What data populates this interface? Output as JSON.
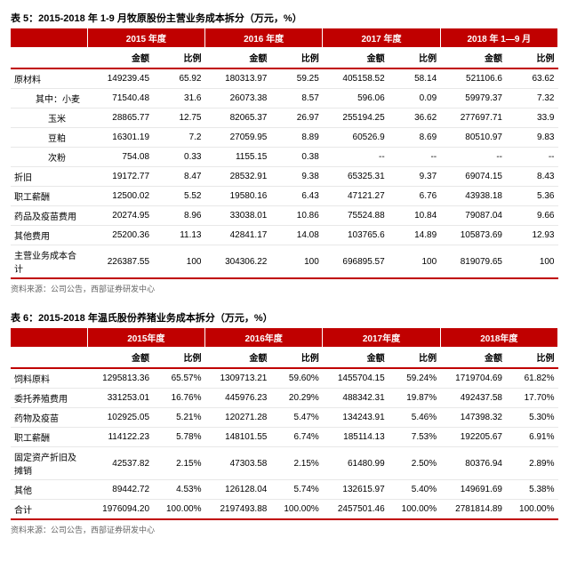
{
  "table5": {
    "title": "表 5：2015-2018 年 1-9 月牧原股份主营业务成本拆分（万元，%）",
    "year_headers": [
      "2015 年度",
      "2016 年度",
      "2017 年度",
      "2018 年 1—9 月"
    ],
    "sub_headers": [
      "金额",
      "比例",
      "金额",
      "比例",
      "金额",
      "比例",
      "金额",
      "比例"
    ],
    "rows": [
      {
        "label": "原材料",
        "indent": 0,
        "v": [
          "149239.45",
          "65.92",
          "180313.97",
          "59.25",
          "405158.52",
          "58.14",
          "521106.6",
          "63.62"
        ]
      },
      {
        "label": "其中：小麦",
        "indent": 1,
        "v": [
          "71540.48",
          "31.6",
          "26073.38",
          "8.57",
          "596.06",
          "0.09",
          "59979.37",
          "7.32"
        ]
      },
      {
        "label": "玉米",
        "indent": 2,
        "v": [
          "28865.77",
          "12.75",
          "82065.37",
          "26.97",
          "255194.25",
          "36.62",
          "277697.71",
          "33.9"
        ]
      },
      {
        "label": "豆粕",
        "indent": 2,
        "v": [
          "16301.19",
          "7.2",
          "27059.95",
          "8.89",
          "60526.9",
          "8.69",
          "80510.97",
          "9.83"
        ]
      },
      {
        "label": "次粉",
        "indent": 2,
        "v": [
          "754.08",
          "0.33",
          "1155.15",
          "0.38",
          "--",
          "--",
          "--",
          "--"
        ]
      },
      {
        "label": "折旧",
        "indent": 0,
        "v": [
          "19172.77",
          "8.47",
          "28532.91",
          "9.38",
          "65325.31",
          "9.37",
          "69074.15",
          "8.43"
        ]
      },
      {
        "label": "职工薪酬",
        "indent": 0,
        "v": [
          "12500.02",
          "5.52",
          "19580.16",
          "6.43",
          "47121.27",
          "6.76",
          "43938.18",
          "5.36"
        ]
      },
      {
        "label": "药品及疫苗费用",
        "indent": 0,
        "v": [
          "20274.95",
          "8.96",
          "33038.01",
          "10.86",
          "75524.88",
          "10.84",
          "79087.04",
          "9.66"
        ]
      },
      {
        "label": "其他费用",
        "indent": 0,
        "v": [
          "25200.36",
          "11.13",
          "42841.17",
          "14.08",
          "103765.6",
          "14.89",
          "105873.69",
          "12.93"
        ]
      },
      {
        "label": "主营业务成本合计",
        "indent": 0,
        "total": true,
        "v": [
          "226387.55",
          "100",
          "304306.22",
          "100",
          "696895.57",
          "100",
          "819079.65",
          "100"
        ]
      }
    ],
    "source": "资料来源：公司公告，西部证券研发中心"
  },
  "table6": {
    "title": "表 6：2015-2018 年温氏股份养猪业务成本拆分（万元，%）",
    "year_headers": [
      "2015年度",
      "2016年度",
      "2017年度",
      "2018年度"
    ],
    "sub_headers": [
      "金额",
      "比例",
      "金额",
      "比例",
      "金额",
      "比例",
      "金额",
      "比例"
    ],
    "rows": [
      {
        "label": "饲料原料",
        "indent": 0,
        "v": [
          "1295813.36",
          "65.57%",
          "1309713.21",
          "59.60%",
          "1455704.15",
          "59.24%",
          "1719704.69",
          "61.82%"
        ]
      },
      {
        "label": "委托养殖费用",
        "indent": 0,
        "v": [
          "331253.01",
          "16.76%",
          "445976.23",
          "20.29%",
          "488342.31",
          "19.87%",
          "492437.58",
          "17.70%"
        ]
      },
      {
        "label": "药物及疫苗",
        "indent": 0,
        "v": [
          "102925.05",
          "5.21%",
          "120271.28",
          "5.47%",
          "134243.91",
          "5.46%",
          "147398.32",
          "5.30%"
        ]
      },
      {
        "label": "职工薪酬",
        "indent": 0,
        "v": [
          "114122.23",
          "5.78%",
          "148101.55",
          "6.74%",
          "185114.13",
          "7.53%",
          "192205.67",
          "6.91%"
        ]
      },
      {
        "label": "固定资产折旧及摊销",
        "indent": 0,
        "v": [
          "42537.82",
          "2.15%",
          "47303.58",
          "2.15%",
          "61480.99",
          "2.50%",
          "80376.94",
          "2.89%"
        ]
      },
      {
        "label": "其他",
        "indent": 0,
        "v": [
          "89442.72",
          "4.53%",
          "126128.04",
          "5.74%",
          "132615.97",
          "5.40%",
          "149691.69",
          "5.38%"
        ]
      },
      {
        "label": "合计",
        "indent": 0,
        "total": true,
        "v": [
          "1976094.20",
          "100.00%",
          "2197493.88",
          "100.00%",
          "2457501.46",
          "100.00%",
          "2781814.89",
          "100.00%"
        ]
      }
    ],
    "source": "资料来源：公司公告，西部证券研发中心"
  }
}
